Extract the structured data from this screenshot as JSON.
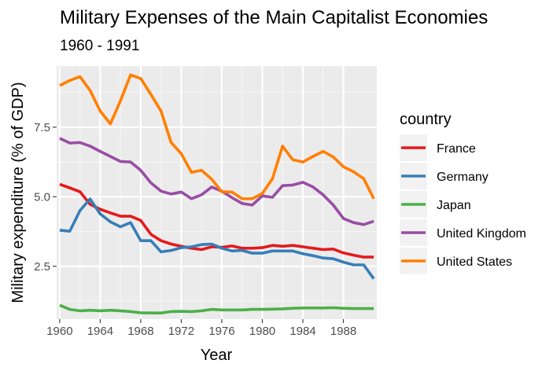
{
  "chart_data": {
    "type": "line",
    "title": "Military Expenses of the Main Capitalist Economies",
    "subtitle": "1960 - 1991",
    "xlabel": "Year",
    "ylabel": "Military expenditure (% of GDP)",
    "xlim": [
      1959.7,
      1991.3
    ],
    "ylim": [
      0.6,
      9.7
    ],
    "x_ticks": [
      1960,
      1964,
      1968,
      1972,
      1976,
      1980,
      1984,
      1988
    ],
    "x_tick_labels": [
      "1960",
      "1964",
      "1968",
      "1972",
      "1976",
      "1980",
      "1984",
      "1988"
    ],
    "y_ticks": [
      2.5,
      5.0,
      7.5
    ],
    "y_tick_labels": [
      "2.5",
      "5.0",
      "7.5"
    ],
    "grid": true,
    "legend_title": "country",
    "legend_position": "right",
    "x": [
      1960,
      1961,
      1962,
      1963,
      1964,
      1965,
      1966,
      1967,
      1968,
      1969,
      1970,
      1971,
      1972,
      1973,
      1974,
      1975,
      1976,
      1977,
      1978,
      1979,
      1980,
      1981,
      1982,
      1983,
      1984,
      1985,
      1986,
      1987,
      1988,
      1989,
      1990,
      1991
    ],
    "series": [
      {
        "name": "France",
        "color": "#e41a1c",
        "values": [
          5.45,
          5.32,
          5.18,
          4.73,
          4.55,
          4.42,
          4.3,
          4.3,
          4.15,
          3.65,
          3.42,
          3.3,
          3.22,
          3.15,
          3.1,
          3.2,
          3.18,
          3.23,
          3.15,
          3.15,
          3.17,
          3.25,
          3.22,
          3.25,
          3.2,
          3.15,
          3.1,
          3.12,
          2.98,
          2.9,
          2.83,
          2.83
        ]
      },
      {
        "name": "Germany",
        "color": "#377eb8",
        "values": [
          3.8,
          3.76,
          4.5,
          4.92,
          4.38,
          4.1,
          3.92,
          4.07,
          3.42,
          3.42,
          3.02,
          3.07,
          3.17,
          3.2,
          3.28,
          3.3,
          3.15,
          3.05,
          3.07,
          2.97,
          2.97,
          3.05,
          3.05,
          3.05,
          2.95,
          2.88,
          2.8,
          2.77,
          2.65,
          2.55,
          2.55,
          2.05
        ]
      },
      {
        "name": "Japan",
        "color": "#4daf4a",
        "values": [
          1.1,
          0.95,
          0.9,
          0.92,
          0.9,
          0.92,
          0.9,
          0.87,
          0.83,
          0.82,
          0.82,
          0.87,
          0.88,
          0.87,
          0.9,
          0.95,
          0.93,
          0.93,
          0.93,
          0.95,
          0.95,
          0.96,
          0.97,
          0.99,
          1.0,
          1.0,
          1.0,
          1.01,
          0.99,
          0.98,
          0.98,
          0.98
        ]
      },
      {
        "name": "United Kingdom",
        "color": "#984ea3",
        "values": [
          7.1,
          6.93,
          6.95,
          6.82,
          6.63,
          6.45,
          6.27,
          6.25,
          5.95,
          5.5,
          5.2,
          5.1,
          5.17,
          4.93,
          5.07,
          5.35,
          5.2,
          4.97,
          4.76,
          4.7,
          5.03,
          4.98,
          5.4,
          5.42,
          5.52,
          5.35,
          5.07,
          4.7,
          4.22,
          4.07,
          4.0,
          4.12
        ]
      },
      {
        "name": "United States",
        "color": "#ff7f00",
        "values": [
          9.0,
          9.18,
          9.32,
          8.82,
          8.08,
          7.62,
          8.45,
          9.38,
          9.25,
          8.68,
          8.08,
          6.95,
          6.55,
          5.88,
          5.95,
          5.63,
          5.18,
          5.17,
          4.93,
          4.93,
          5.12,
          5.65,
          6.82,
          6.33,
          6.25,
          6.45,
          6.63,
          6.43,
          6.08,
          5.9,
          5.65,
          4.93
        ]
      }
    ]
  }
}
